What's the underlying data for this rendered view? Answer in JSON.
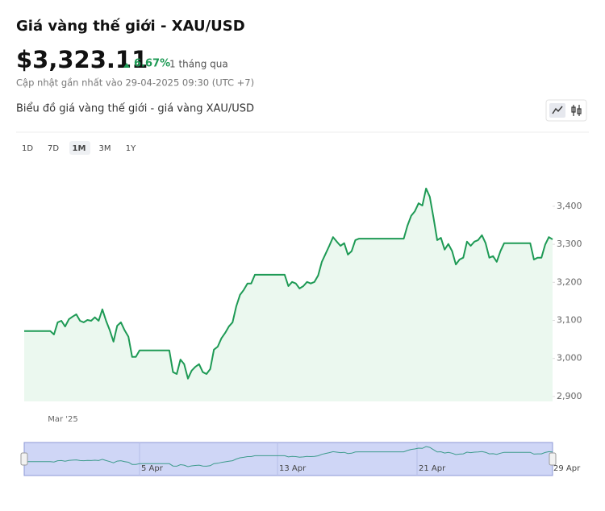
{
  "header": {
    "title": "Giá vàng thế giới - XAU/USD",
    "price": "$3,323.11",
    "change": "6.67%",
    "period": "1 tháng qua",
    "updated": "Cập nhật gần nhất vào 29-04-2025 09:30 (UTC +7)"
  },
  "chart_heading": "Biểu đồ giá vàng thế giới - giá vàng XAU/USD",
  "ranges": [
    "1D",
    "7D",
    "1M",
    "3M",
    "1Y"
  ],
  "active_range": "1M",
  "chart_data": {
    "type": "line",
    "color": "#1e9a55",
    "fill": "#ebf8ef",
    "x_label": "Mar '25",
    "values": [
      3072,
      3072,
      3072,
      3072,
      3072,
      3072,
      3072,
      3072,
      3063,
      3095,
      3099,
      3084,
      3103,
      3110,
      3116,
      3099,
      3095,
      3101,
      3099,
      3108,
      3099,
      3129,
      3099,
      3074,
      3044,
      3086,
      3095,
      3074,
      3057,
      3004,
      3004,
      3021,
      3021,
      3021,
      3021,
      3021,
      3021,
      3021,
      3021,
      3021,
      2964,
      2959,
      2997,
      2985,
      2947,
      2968,
      2978,
      2985,
      2964,
      2959,
      2972,
      3023,
      3031,
      3053,
      3067,
      3084,
      3095,
      3137,
      3167,
      3180,
      3197,
      3197,
      3220,
      3220,
      3220,
      3220,
      3220,
      3220,
      3220,
      3220,
      3220,
      3190,
      3201,
      3197,
      3184,
      3190,
      3201,
      3197,
      3201,
      3218,
      3254,
      3275,
      3296,
      3319,
      3307,
      3296,
      3303,
      3273,
      3282,
      3311,
      3315,
      3315,
      3315,
      3315,
      3315,
      3315,
      3315,
      3315,
      3315,
      3315,
      3315,
      3315,
      3315,
      3349,
      3375,
      3387,
      3408,
      3402,
      3447,
      3425,
      3370,
      3311,
      3317,
      3286,
      3301,
      3282,
      3247,
      3260,
      3265,
      3307,
      3296,
      3307,
      3311,
      3324,
      3303,
      3265,
      3269,
      3254,
      3282,
      3303,
      3303,
      3303,
      3303,
      3303,
      3303,
      3303,
      3303,
      3260,
      3265,
      3265,
      3299,
      3319,
      3313
    ],
    "ylim": [
      2887,
      3508
    ],
    "yticks": [
      {
        "value": 2900,
        "label": "2,900"
      },
      {
        "value": 3000,
        "label": "3,000"
      },
      {
        "value": 3100,
        "label": "3,100"
      },
      {
        "value": 3200,
        "label": "3,200"
      },
      {
        "value": 3300,
        "label": "3,300"
      },
      {
        "value": 3400,
        "label": "3,400"
      }
    ],
    "navigator_ticks": [
      "5 Apr",
      "13 Apr",
      "21 Apr",
      "29 Apr"
    ]
  }
}
